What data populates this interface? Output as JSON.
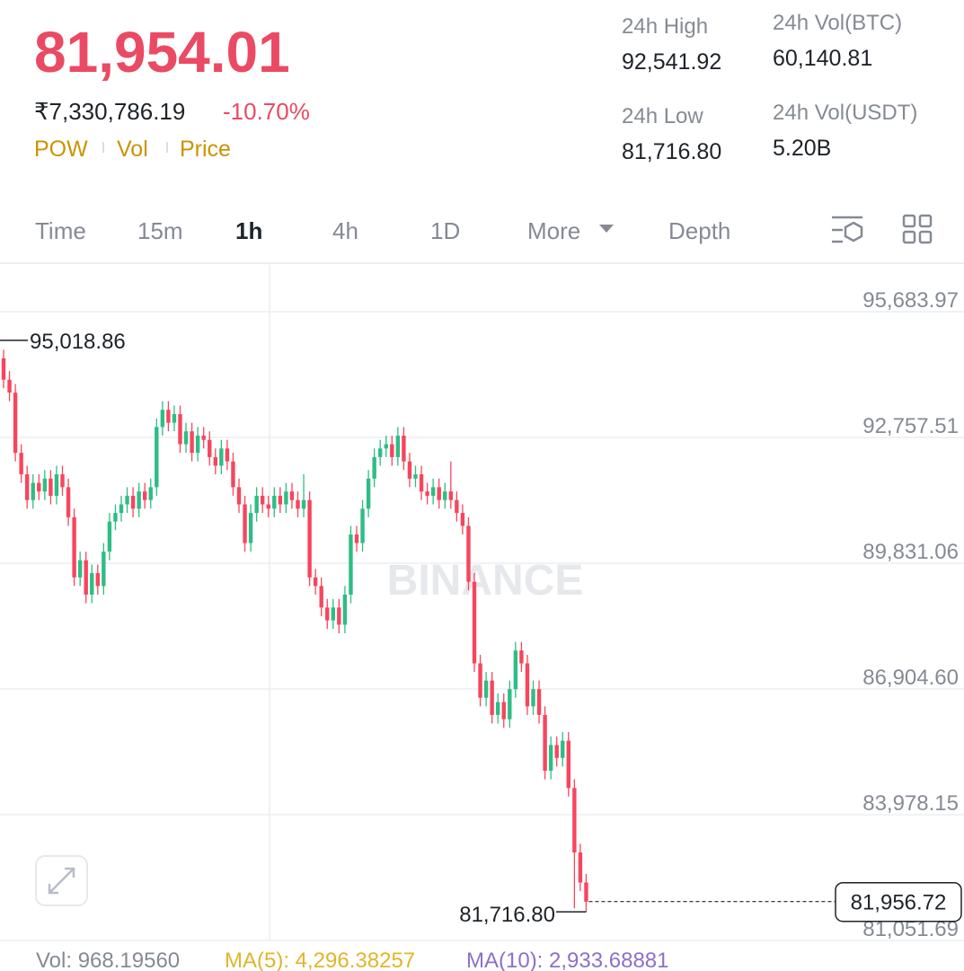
{
  "header": {
    "price": "81,954.01",
    "price_inr": "₹7,330,786.19",
    "change": "-10.70%",
    "tags": [
      "POW",
      "Vol",
      "Price"
    ]
  },
  "stats": [
    {
      "label": "24h High",
      "value": "92,541.92"
    },
    {
      "label": "24h Low",
      "value": "81,716.80"
    },
    {
      "label": "24h Vol(BTC)",
      "value": "60,140.81"
    },
    {
      "label": "24h Vol(USDT)",
      "value": "5.20B"
    }
  ],
  "tabs": [
    "Time",
    "15m",
    "1h",
    "4h",
    "1D",
    "More",
    "Depth"
  ],
  "chart_data": {
    "type": "candlestick",
    "up_color": "#2ebd85",
    "down_color": "#f6465d",
    "watermark": "BINANCE",
    "ylim": [
      81051.69,
      96771
    ],
    "yticks": [
      {
        "value": 95683.97,
        "label": "95,683.97"
      },
      {
        "value": 92757.51,
        "label": "92,757.51"
      },
      {
        "value": 89831.06,
        "label": "89,831.06"
      },
      {
        "value": 86904.6,
        "label": "86,904.60"
      },
      {
        "value": 83978.15,
        "label": "83,978.15"
      },
      {
        "value": 81051.69,
        "label": "81,051.69"
      }
    ],
    "high_marker": {
      "value": 95018.86,
      "label": "95,018.86"
    },
    "low_marker": {
      "value": 81716.8,
      "label": "81,716.80"
    },
    "last_price": {
      "value": 81956.72,
      "label": "81,956.72"
    },
    "candles": [
      [
        94600,
        94800,
        93900,
        94100
      ],
      [
        94100,
        94300,
        93600,
        93800
      ],
      [
        93800,
        94000,
        92200,
        92400
      ],
      [
        92400,
        92600,
        91700,
        91900
      ],
      [
        91900,
        92100,
        91100,
        91300
      ],
      [
        91300,
        91900,
        91100,
        91700
      ],
      [
        91700,
        91900,
        91300,
        91500
      ],
      [
        91500,
        92000,
        91300,
        91800
      ],
      [
        91800,
        92000,
        91200,
        91400
      ],
      [
        91400,
        92100,
        91200,
        91900
      ],
      [
        91900,
        92100,
        91400,
        91600
      ],
      [
        91600,
        91800,
        90700,
        90900
      ],
      [
        90900,
        91100,
        89300,
        89500
      ],
      [
        89500,
        90100,
        89300,
        89900
      ],
      [
        89900,
        90100,
        88900,
        89100
      ],
      [
        89100,
        89800,
        88900,
        89600
      ],
      [
        89600,
        89800,
        89100,
        89300
      ],
      [
        89300,
        90300,
        89100,
        90100
      ],
      [
        90100,
        91000,
        89900,
        90800
      ],
      [
        90800,
        91200,
        90600,
        91000
      ],
      [
        91000,
        91400,
        90800,
        91200
      ],
      [
        91200,
        91600,
        91000,
        91400
      ],
      [
        91400,
        91600,
        90900,
        91100
      ],
      [
        91100,
        91700,
        90900,
        91500
      ],
      [
        91500,
        91700,
        91100,
        91300
      ],
      [
        91300,
        91800,
        91100,
        91600
      ],
      [
        91600,
        93200,
        91400,
        93000
      ],
      [
        93000,
        93600,
        92800,
        93400
      ],
      [
        93400,
        93600,
        92900,
        93100
      ],
      [
        93100,
        93500,
        92900,
        93300
      ],
      [
        93300,
        93500,
        92400,
        92600
      ],
      [
        92600,
        93100,
        92400,
        92900
      ],
      [
        92900,
        93100,
        92200,
        92400
      ],
      [
        92400,
        93000,
        92200,
        92800
      ],
      [
        92800,
        93000,
        92500,
        92700
      ],
      [
        92700,
        92900,
        92100,
        92300
      ],
      [
        92300,
        92500,
        91900,
        92100
      ],
      [
        92100,
        92700,
        91900,
        92500
      ],
      [
        92500,
        92700,
        92000,
        92200
      ],
      [
        92200,
        92400,
        91400,
        91600
      ],
      [
        91600,
        91800,
        91000,
        91200
      ],
      [
        91200,
        91400,
        90100,
        90300
      ],
      [
        90300,
        91200,
        90100,
        91000
      ],
      [
        91000,
        91600,
        90800,
        91400
      ],
      [
        91400,
        91600,
        91000,
        91200
      ],
      [
        91200,
        91400,
        90900,
        91100
      ],
      [
        91100,
        91600,
        90900,
        91400
      ],
      [
        91400,
        91600,
        91000,
        91200
      ],
      [
        91200,
        91700,
        91000,
        91500
      ],
      [
        91500,
        91700,
        91100,
        91300
      ],
      [
        91300,
        91500,
        90900,
        91100
      ],
      [
        91100,
        91900,
        90900,
        91300
      ],
      [
        91300,
        91500,
        89300,
        89500
      ],
      [
        89500,
        89700,
        89100,
        89300
      ],
      [
        89300,
        89500,
        88600,
        88800
      ],
      [
        88800,
        89000,
        88300,
        88500
      ],
      [
        88500,
        89000,
        88300,
        88800
      ],
      [
        88800,
        89000,
        88200,
        88400
      ],
      [
        88400,
        89300,
        88200,
        89100
      ],
      [
        89100,
        90700,
        88900,
        90500
      ],
      [
        90500,
        90700,
        90100,
        90300
      ],
      [
        90300,
        91300,
        90100,
        91100
      ],
      [
        91100,
        92000,
        90900,
        91800
      ],
      [
        91800,
        92500,
        91600,
        92300
      ],
      [
        92300,
        92700,
        92100,
        92500
      ],
      [
        92500,
        92800,
        92300,
        92600
      ],
      [
        92600,
        92800,
        92100,
        92300
      ],
      [
        92300,
        93000,
        92100,
        92800
      ],
      [
        92800,
        93000,
        92000,
        92200
      ],
      [
        92200,
        92400,
        91600,
        91800
      ],
      [
        91800,
        92100,
        91600,
        91900
      ],
      [
        91900,
        92100,
        91300,
        91500
      ],
      [
        91500,
        91700,
        91200,
        91400
      ],
      [
        91400,
        91800,
        91200,
        91600
      ],
      [
        91600,
        91800,
        91100,
        91300
      ],
      [
        91300,
        91700,
        91100,
        91500
      ],
      [
        91500,
        92200,
        91100,
        91300
      ],
      [
        91300,
        91500,
        90800,
        91000
      ],
      [
        91000,
        91200,
        90500,
        90700
      ],
      [
        90700,
        90900,
        89200,
        89400
      ],
      [
        89400,
        89600,
        87300,
        87500
      ],
      [
        87500,
        87700,
        86500,
        86700
      ],
      [
        86700,
        87300,
        86500,
        87100
      ],
      [
        87100,
        87300,
        86100,
        86300
      ],
      [
        86300,
        86800,
        86100,
        86600
      ],
      [
        86600,
        86800,
        86000,
        86200
      ],
      [
        86200,
        87100,
        86000,
        86900
      ],
      [
        86900,
        88000,
        86700,
        87800
      ],
      [
        87800,
        88000,
        87300,
        87500
      ],
      [
        87500,
        87700,
        86300,
        86500
      ],
      [
        86500,
        87100,
        86300,
        86900
      ],
      [
        86900,
        87100,
        86100,
        86300
      ],
      [
        86300,
        86500,
        84800,
        85000
      ],
      [
        85000,
        85800,
        84800,
        85600
      ],
      [
        85600,
        85800,
        85100,
        85300
      ],
      [
        85300,
        85900,
        85100,
        85700
      ],
      [
        85700,
        85900,
        84400,
        84600
      ],
      [
        84600,
        84800,
        81800,
        83100
      ],
      [
        83100,
        83300,
        82200,
        82400
      ],
      [
        82400,
        82600,
        81716.8,
        81954.01
      ]
    ]
  },
  "footer": [
    "Vol: 968.19560",
    "MA(5): 4,296.38257",
    "MA(10): 2,933.68881"
  ]
}
